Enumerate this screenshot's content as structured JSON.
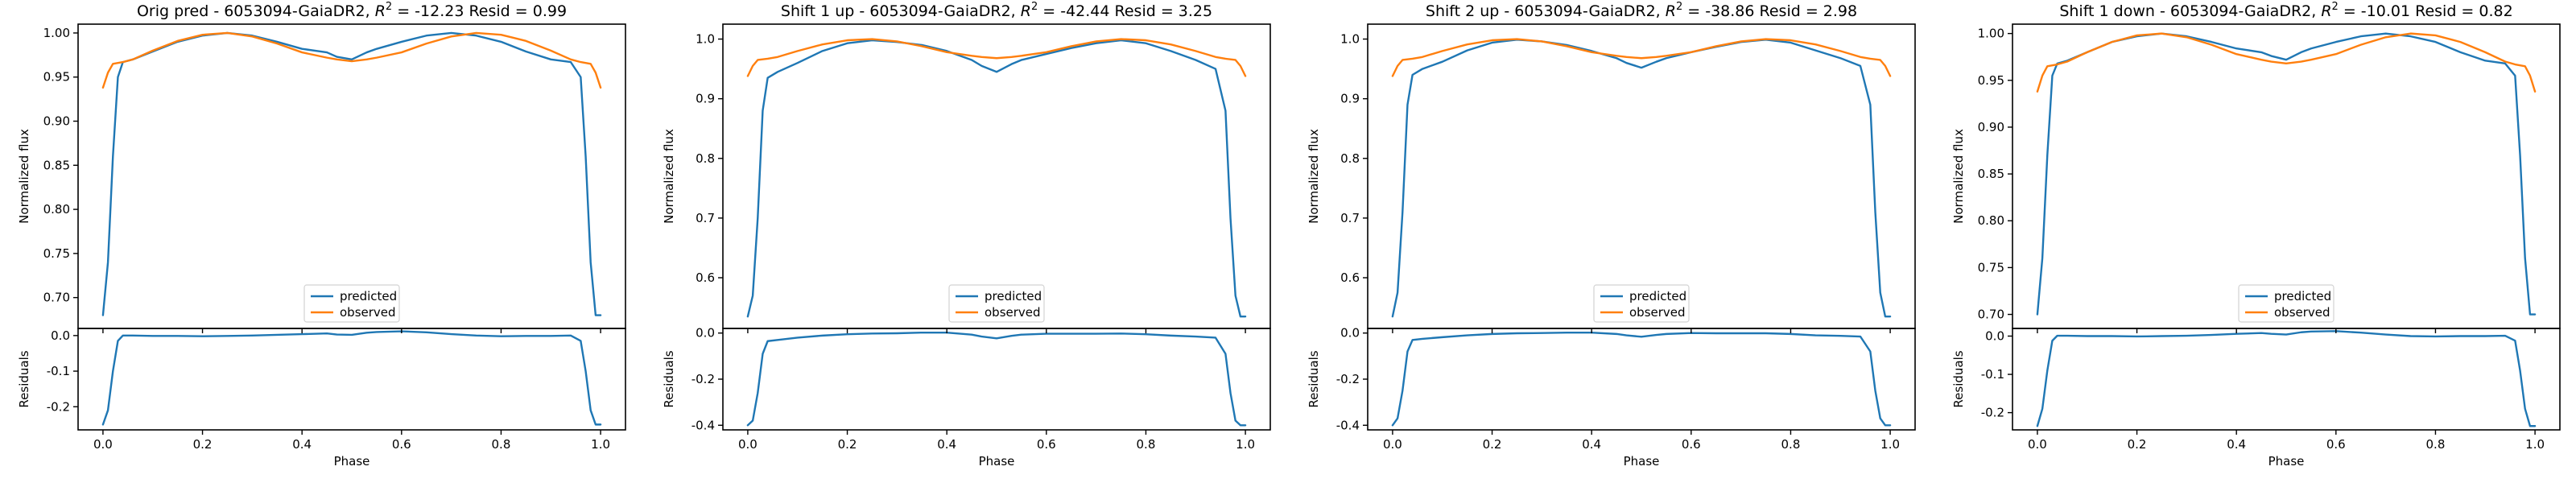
{
  "colors": {
    "predicted": "#1f77b4",
    "observed": "#ff7f0e"
  },
  "chart_data": [
    {
      "type": "line",
      "title_prefix": "Orig pred - 6053094-GaiaDR2, ",
      "r2_label": "R",
      "r2_sup": "2",
      "title_suffix": " = -12.23 Resid = 0.99",
      "ylabel": "Normalized flux",
      "resid_ylabel": "Residuals",
      "xlabel": "Phase",
      "legend": [
        "predicted",
        "observed"
      ],
      "legend_position": "lower-center",
      "xlim": [
        -0.05,
        1.05
      ],
      "ylim": [
        0.665,
        1.01
      ],
      "resid_ylim": [
        -0.265,
        0.02
      ],
      "x_ticks": [
        "0.0",
        "0.2",
        "0.4",
        "0.6",
        "0.8",
        "1.0"
      ],
      "y_ticks": [
        "0.70",
        "0.75",
        "0.80",
        "0.85",
        "0.90",
        "0.95",
        "1.00"
      ],
      "resid_ticks": [
        "-0.2",
        "-0.1",
        "0.0"
      ],
      "phase": [
        0.0,
        0.01,
        0.02,
        0.03,
        0.04,
        0.06,
        0.1,
        0.15,
        0.2,
        0.25,
        0.3,
        0.35,
        0.4,
        0.45,
        0.47,
        0.5,
        0.53,
        0.55,
        0.6,
        0.65,
        0.7,
        0.75,
        0.8,
        0.85,
        0.9,
        0.94,
        0.96,
        0.97,
        0.98,
        0.99,
        1.0
      ],
      "predicted": [
        0.68,
        0.74,
        0.86,
        0.95,
        0.967,
        0.97,
        0.979,
        0.99,
        0.997,
        1.0,
        0.997,
        0.99,
        0.982,
        0.978,
        0.973,
        0.97,
        0.978,
        0.982,
        0.99,
        0.997,
        1.0,
        0.997,
        0.99,
        0.979,
        0.97,
        0.967,
        0.95,
        0.86,
        0.74,
        0.68,
        0.68
      ],
      "observed": [
        0.938,
        0.955,
        0.965,
        0.966,
        0.967,
        0.97,
        0.98,
        0.991,
        0.998,
        1.0,
        0.996,
        0.988,
        0.978,
        0.972,
        0.97,
        0.968,
        0.97,
        0.972,
        0.978,
        0.988,
        0.996,
        1.0,
        0.998,
        0.991,
        0.98,
        0.97,
        0.967,
        0.966,
        0.965,
        0.955,
        0.938
      ],
      "residuals": [
        -0.25,
        -0.21,
        -0.1,
        -0.015,
        0.0,
        0.0,
        -0.001,
        -0.001,
        -0.002,
        -0.001,
        0.0,
        0.002,
        0.004,
        0.006,
        0.003,
        0.002,
        0.008,
        0.01,
        0.012,
        0.009,
        0.004,
        0.0,
        -0.002,
        -0.001,
        -0.001,
        0.0,
        -0.015,
        -0.1,
        -0.21,
        -0.25,
        -0.25
      ]
    },
    {
      "type": "line",
      "title_prefix": "Shift 1 up - 6053094-GaiaDR2, ",
      "r2_label": "R",
      "r2_sup": "2",
      "title_suffix": " = -42.44 Resid = 3.25",
      "ylabel": "Normalized flux",
      "resid_ylabel": "Residuals",
      "xlabel": "Phase",
      "legend": [
        "predicted",
        "observed"
      ],
      "legend_position": "lower-center",
      "xlim": [
        -0.05,
        1.05
      ],
      "ylim": [
        0.515,
        1.025
      ],
      "resid_ylim": [
        -0.42,
        0.02
      ],
      "x_ticks": [
        "0.0",
        "0.2",
        "0.4",
        "0.6",
        "0.8",
        "1.0"
      ],
      "y_ticks": [
        "0.6",
        "0.7",
        "0.8",
        "0.9",
        "1.0"
      ],
      "resid_ticks": [
        "-0.4",
        "-0.2",
        "0.0"
      ],
      "phase": [
        0.0,
        0.01,
        0.02,
        0.03,
        0.04,
        0.06,
        0.1,
        0.15,
        0.2,
        0.25,
        0.3,
        0.35,
        0.4,
        0.45,
        0.47,
        0.5,
        0.53,
        0.55,
        0.6,
        0.65,
        0.7,
        0.75,
        0.8,
        0.85,
        0.9,
        0.94,
        0.96,
        0.97,
        0.98,
        0.99,
        1.0
      ],
      "predicted": [
        0.535,
        0.57,
        0.7,
        0.88,
        0.935,
        0.945,
        0.96,
        0.98,
        0.993,
        0.998,
        0.995,
        0.99,
        0.98,
        0.965,
        0.955,
        0.945,
        0.958,
        0.965,
        0.975,
        0.985,
        0.993,
        0.998,
        0.993,
        0.98,
        0.965,
        0.95,
        0.88,
        0.7,
        0.57,
        0.535,
        0.535
      ],
      "observed": [
        0.938,
        0.955,
        0.965,
        0.966,
        0.967,
        0.97,
        0.98,
        0.991,
        0.998,
        1.0,
        0.996,
        0.988,
        0.978,
        0.972,
        0.97,
        0.968,
        0.97,
        0.972,
        0.978,
        0.988,
        0.996,
        1.0,
        0.998,
        0.991,
        0.98,
        0.97,
        0.967,
        0.966,
        0.965,
        0.955,
        0.938
      ],
      "residuals": [
        -0.4,
        -0.38,
        -0.26,
        -0.09,
        -0.035,
        -0.03,
        -0.02,
        -0.011,
        -0.005,
        -0.002,
        -0.001,
        0.002,
        0.002,
        -0.007,
        -0.015,
        -0.023,
        -0.012,
        -0.007,
        -0.003,
        -0.003,
        -0.003,
        -0.002,
        -0.005,
        -0.011,
        -0.015,
        -0.02,
        -0.09,
        -0.26,
        -0.38,
        -0.4,
        -0.4
      ]
    },
    {
      "type": "line",
      "title_prefix": "Shift 2 up - 6053094-GaiaDR2, ",
      "r2_label": "R",
      "r2_sup": "2",
      "title_suffix": " = -38.86 Resid = 2.98",
      "ylabel": "Normalized flux",
      "resid_ylabel": "Residuals",
      "xlabel": "Phase",
      "legend": [
        "predicted",
        "observed"
      ],
      "legend_position": "lower-center",
      "xlim": [
        -0.05,
        1.05
      ],
      "ylim": [
        0.515,
        1.025
      ],
      "resid_ylim": [
        -0.42,
        0.02
      ],
      "x_ticks": [
        "0.0",
        "0.2",
        "0.4",
        "0.6",
        "0.8",
        "1.0"
      ],
      "y_ticks": [
        "0.6",
        "0.7",
        "0.8",
        "0.9",
        "1.0"
      ],
      "resid_ticks": [
        "-0.4",
        "-0.2",
        "0.0"
      ],
      "phase": [
        0.0,
        0.01,
        0.02,
        0.03,
        0.04,
        0.06,
        0.1,
        0.15,
        0.2,
        0.25,
        0.3,
        0.35,
        0.4,
        0.45,
        0.47,
        0.5,
        0.53,
        0.55,
        0.6,
        0.65,
        0.7,
        0.75,
        0.8,
        0.85,
        0.9,
        0.94,
        0.96,
        0.97,
        0.98,
        0.99,
        1.0
      ],
      "predicted": [
        0.535,
        0.575,
        0.71,
        0.89,
        0.94,
        0.95,
        0.962,
        0.981,
        0.994,
        0.999,
        0.996,
        0.99,
        0.98,
        0.968,
        0.96,
        0.952,
        0.962,
        0.968,
        0.978,
        0.987,
        0.995,
        0.999,
        0.994,
        0.981,
        0.968,
        0.955,
        0.89,
        0.71,
        0.575,
        0.535,
        0.535
      ],
      "observed": [
        0.938,
        0.955,
        0.965,
        0.966,
        0.967,
        0.97,
        0.98,
        0.991,
        0.998,
        1.0,
        0.996,
        0.988,
        0.978,
        0.972,
        0.97,
        0.968,
        0.97,
        0.972,
        0.978,
        0.988,
        0.996,
        1.0,
        0.998,
        0.991,
        0.98,
        0.97,
        0.967,
        0.966,
        0.965,
        0.955,
        0.938
      ],
      "residuals": [
        -0.4,
        -0.37,
        -0.25,
        -0.08,
        -0.03,
        -0.025,
        -0.018,
        -0.01,
        -0.004,
        -0.001,
        0.0,
        0.002,
        0.002,
        -0.004,
        -0.01,
        -0.016,
        -0.008,
        -0.004,
        0.0,
        -0.001,
        -0.001,
        -0.001,
        -0.004,
        -0.01,
        -0.012,
        -0.015,
        -0.08,
        -0.25,
        -0.37,
        -0.4,
        -0.4
      ]
    },
    {
      "type": "line",
      "title_prefix": "Shift 1 down - 6053094-GaiaDR2, ",
      "r2_label": "R",
      "r2_sup": "2",
      "title_suffix": " = -10.01 Resid = 0.82",
      "ylabel": "Normalized flux",
      "resid_ylabel": "Residuals",
      "xlabel": "Phase",
      "legend": [
        "predicted",
        "observed"
      ],
      "legend_position": "lower-center",
      "xlim": [
        -0.05,
        1.05
      ],
      "ylim": [
        0.685,
        1.01
      ],
      "resid_ylim": [
        -0.245,
        0.02
      ],
      "x_ticks": [
        "0.0",
        "0.2",
        "0.4",
        "0.6",
        "0.8",
        "1.0"
      ],
      "y_ticks": [
        "0.70",
        "0.75",
        "0.80",
        "0.85",
        "0.90",
        "0.95",
        "1.00"
      ],
      "resid_ticks": [
        "-0.2",
        "-0.1",
        "0.0"
      ],
      "phase": [
        0.0,
        0.01,
        0.02,
        0.03,
        0.04,
        0.06,
        0.1,
        0.15,
        0.2,
        0.25,
        0.3,
        0.35,
        0.4,
        0.45,
        0.47,
        0.5,
        0.53,
        0.55,
        0.6,
        0.65,
        0.7,
        0.75,
        0.8,
        0.85,
        0.9,
        0.94,
        0.96,
        0.97,
        0.98,
        0.99,
        1.0
      ],
      "predicted": [
        0.7,
        0.76,
        0.87,
        0.955,
        0.968,
        0.971,
        0.98,
        0.991,
        0.997,
        1.0,
        0.997,
        0.991,
        0.984,
        0.98,
        0.976,
        0.972,
        0.98,
        0.984,
        0.991,
        0.997,
        1.0,
        0.997,
        0.991,
        0.98,
        0.971,
        0.968,
        0.955,
        0.87,
        0.76,
        0.7,
        0.7
      ],
      "observed": [
        0.938,
        0.955,
        0.965,
        0.966,
        0.967,
        0.97,
        0.98,
        0.991,
        0.998,
        1.0,
        0.996,
        0.988,
        0.978,
        0.972,
        0.97,
        0.968,
        0.97,
        0.972,
        0.978,
        0.988,
        0.996,
        1.0,
        0.998,
        0.991,
        0.98,
        0.97,
        0.967,
        0.966,
        0.965,
        0.955,
        0.938
      ],
      "residuals": [
        -0.235,
        -0.19,
        -0.09,
        -0.012,
        0.001,
        0.001,
        0.0,
        0.0,
        -0.001,
        0.0,
        0.001,
        0.003,
        0.006,
        0.008,
        0.006,
        0.004,
        0.01,
        0.012,
        0.013,
        0.009,
        0.004,
        0.0,
        -0.001,
        0.0,
        0.0,
        0.001,
        -0.012,
        -0.09,
        -0.19,
        -0.235,
        -0.235
      ]
    }
  ]
}
